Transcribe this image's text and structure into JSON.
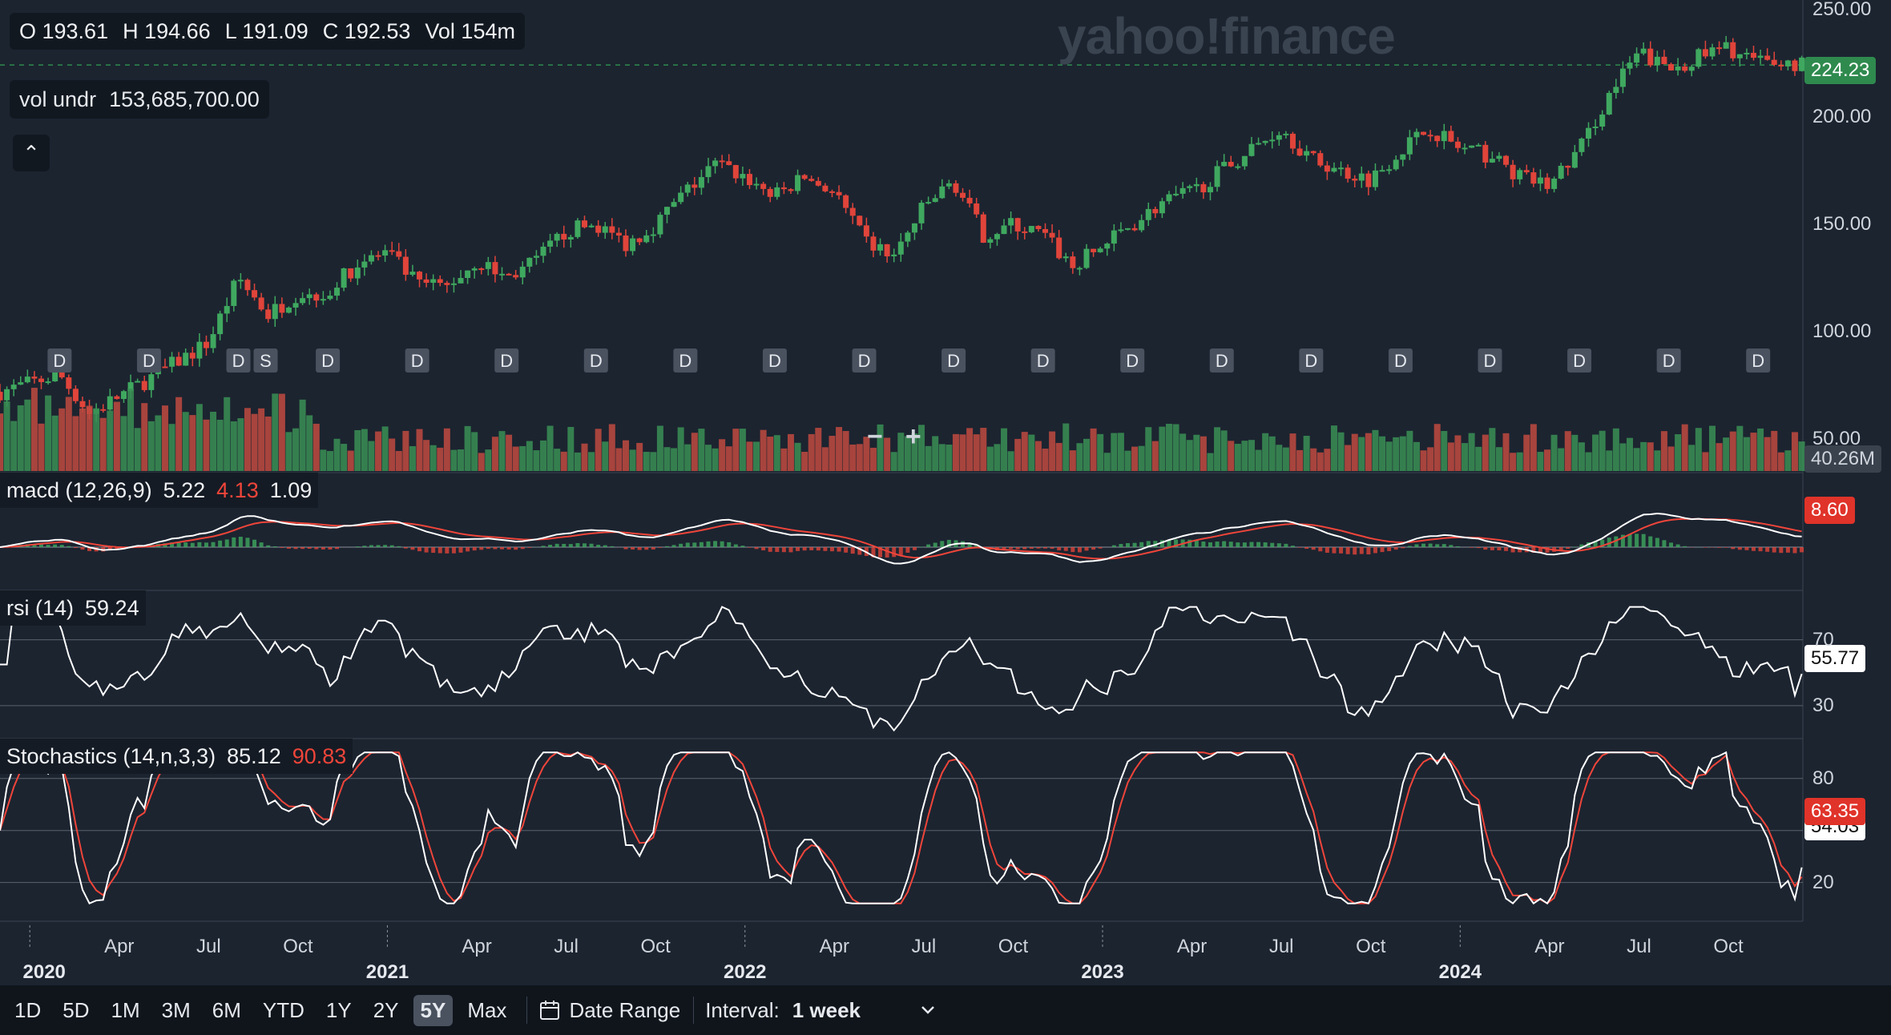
{
  "header": {
    "ohlc": {
      "o": "O 193.61",
      "h": "H 194.66",
      "l": "L 191.09",
      "c": "C 192.53",
      "vol": "Vol 154m"
    },
    "vol_label": "vol undr",
    "vol_value": "153,685,700.00",
    "watermark": "yahoo!finance",
    "collapse_icon": "chevron-up-icon"
  },
  "indicators": {
    "macd": {
      "name": "macd (12,26,9)",
      "v1": "5.22",
      "v2": "4.13",
      "v3": "1.09",
      "tag": "8.60"
    },
    "rsi": {
      "name": "rsi (14)",
      "value": "59.24",
      "tag": "55.77"
    },
    "stoch": {
      "name": "Stochastics (14,n,3,3)",
      "k": "85.12",
      "d": "90.83",
      "tag_red": "63.35",
      "tag_white": "54.03"
    }
  },
  "price_tags": {
    "last": "224.23",
    "volume": "40.26M"
  },
  "zoom": {
    "minus": "−",
    "plus": "+"
  },
  "colors": {
    "up": "#3fa85f",
    "down": "#e0443a",
    "bg": "#1c2430",
    "white": "#ffffff",
    "red_line": "#f0453a"
  },
  "chart_data": {
    "type": "candlestick",
    "interval": "1 week",
    "price_axis": {
      "ticks": [
        "250.00",
        "200.00",
        "150.00",
        "100.00",
        "50.00"
      ],
      "range": [
        50,
        250
      ]
    },
    "rsi_axis": {
      "ticks": [
        "70",
        "30"
      ]
    },
    "stoch_axis": {
      "ticks": [
        "80",
        "20"
      ]
    },
    "x_labels": [
      {
        "label": "Apr",
        "date": "2020-04"
      },
      {
        "label": "Jul",
        "date": "2020-07"
      },
      {
        "label": "Oct",
        "date": "2020-10"
      },
      {
        "label": "Apr",
        "date": "2021-04"
      },
      {
        "label": "Jul",
        "date": "2021-07"
      },
      {
        "label": "Oct",
        "date": "2021-10"
      },
      {
        "label": "Apr",
        "date": "2022-04"
      },
      {
        "label": "Jul",
        "date": "2022-07"
      },
      {
        "label": "Oct",
        "date": "2022-10"
      },
      {
        "label": "Apr",
        "date": "2023-04"
      },
      {
        "label": "Jul",
        "date": "2023-07"
      },
      {
        "label": "Oct",
        "date": "2023-10"
      },
      {
        "label": "Apr",
        "date": "2024-04"
      },
      {
        "label": "Jul",
        "date": "2024-07"
      },
      {
        "label": "Oct",
        "date": "2024-10"
      }
    ],
    "year_labels": [
      {
        "label": "2020",
        "date": "2020-01"
      },
      {
        "label": "2021",
        "date": "2021-01"
      },
      {
        "label": "2022",
        "date": "2022-01"
      },
      {
        "label": "2023",
        "date": "2023-01"
      },
      {
        "label": "2024",
        "date": "2024-01"
      }
    ],
    "price_series": [
      {
        "date": "2019-12",
        "price": 72
      },
      {
        "date": "2020-02",
        "price": 80
      },
      {
        "date": "2020-03",
        "price": 62
      },
      {
        "date": "2020-05",
        "price": 78
      },
      {
        "date": "2020-07",
        "price": 95
      },
      {
        "date": "2020-08",
        "price": 125
      },
      {
        "date": "2020-09",
        "price": 108
      },
      {
        "date": "2020-10",
        "price": 118
      },
      {
        "date": "2020-11",
        "price": 118
      },
      {
        "date": "2020-12",
        "price": 132
      },
      {
        "date": "2021-01",
        "price": 137
      },
      {
        "date": "2021-02",
        "price": 122
      },
      {
        "date": "2021-03",
        "price": 121
      },
      {
        "date": "2021-04",
        "price": 133
      },
      {
        "date": "2021-05",
        "price": 125
      },
      {
        "date": "2021-06",
        "price": 133
      },
      {
        "date": "2021-07",
        "price": 147
      },
      {
        "date": "2021-08",
        "price": 150
      },
      {
        "date": "2021-09",
        "price": 141
      },
      {
        "date": "2021-10",
        "price": 150
      },
      {
        "date": "2021-11",
        "price": 165
      },
      {
        "date": "2021-12",
        "price": 178
      },
      {
        "date": "2022-01",
        "price": 172
      },
      {
        "date": "2022-02",
        "price": 163
      },
      {
        "date": "2022-03",
        "price": 172
      },
      {
        "date": "2022-04",
        "price": 165
      },
      {
        "date": "2022-05",
        "price": 142
      },
      {
        "date": "2022-06",
        "price": 135
      },
      {
        "date": "2022-07",
        "price": 158
      },
      {
        "date": "2022-08",
        "price": 170
      },
      {
        "date": "2022-09",
        "price": 145
      },
      {
        "date": "2022-10",
        "price": 150
      },
      {
        "date": "2022-11",
        "price": 145
      },
      {
        "date": "2022-12",
        "price": 130
      },
      {
        "date": "2023-01",
        "price": 140
      },
      {
        "date": "2023-02",
        "price": 150
      },
      {
        "date": "2023-03",
        "price": 160
      },
      {
        "date": "2023-04",
        "price": 165
      },
      {
        "date": "2023-05",
        "price": 175
      },
      {
        "date": "2023-06",
        "price": 185
      },
      {
        "date": "2023-07",
        "price": 195
      },
      {
        "date": "2023-08",
        "price": 180
      },
      {
        "date": "2023-09",
        "price": 175
      },
      {
        "date": "2023-10",
        "price": 171
      },
      {
        "date": "2023-11",
        "price": 185
      },
      {
        "date": "2023-12",
        "price": 195
      },
      {
        "date": "2024-01",
        "price": 185
      },
      {
        "date": "2024-02",
        "price": 182
      },
      {
        "date": "2024-03",
        "price": 172
      },
      {
        "date": "2024-04",
        "price": 168
      },
      {
        "date": "2024-05",
        "price": 185
      },
      {
        "date": "2024-06",
        "price": 210
      },
      {
        "date": "2024-07",
        "price": 230
      },
      {
        "date": "2024-08",
        "price": 222
      },
      {
        "date": "2024-09",
        "price": 228
      },
      {
        "date": "2024-10",
        "price": 232
      },
      {
        "date": "2024-11",
        "price": 225
      }
    ],
    "dividend_markers": [
      {
        "date": "2020-02",
        "label": "D"
      },
      {
        "date": "2020-05",
        "label": "D"
      },
      {
        "date": "2020-08",
        "label": "D"
      },
      {
        "date": "2020-08",
        "label": "S"
      },
      {
        "date": "2020-11",
        "label": "D"
      },
      {
        "date": "2021-02",
        "label": "D"
      },
      {
        "date": "2021-05",
        "label": "D"
      },
      {
        "date": "2021-08",
        "label": "D"
      },
      {
        "date": "2021-11",
        "label": "D"
      },
      {
        "date": "2022-02",
        "label": "D"
      },
      {
        "date": "2022-05",
        "label": "D"
      },
      {
        "date": "2022-08",
        "label": "D"
      },
      {
        "date": "2022-11",
        "label": "D"
      },
      {
        "date": "2023-02",
        "label": "D"
      },
      {
        "date": "2023-05",
        "label": "D"
      },
      {
        "date": "2023-08",
        "label": "D"
      },
      {
        "date": "2023-11",
        "label": "D"
      },
      {
        "date": "2024-02",
        "label": "D"
      },
      {
        "date": "2024-05",
        "label": "D"
      },
      {
        "date": "2024-08",
        "label": "D"
      },
      {
        "date": "2024-11",
        "label": "D"
      }
    ]
  },
  "toolbar": {
    "ranges": [
      "1D",
      "5D",
      "1M",
      "3M",
      "6M",
      "YTD",
      "1Y",
      "2Y",
      "5Y",
      "Max"
    ],
    "active_range": "5Y",
    "date_range_label": "Date Range",
    "interval_label": "Interval:",
    "interval_value": "1 week"
  }
}
